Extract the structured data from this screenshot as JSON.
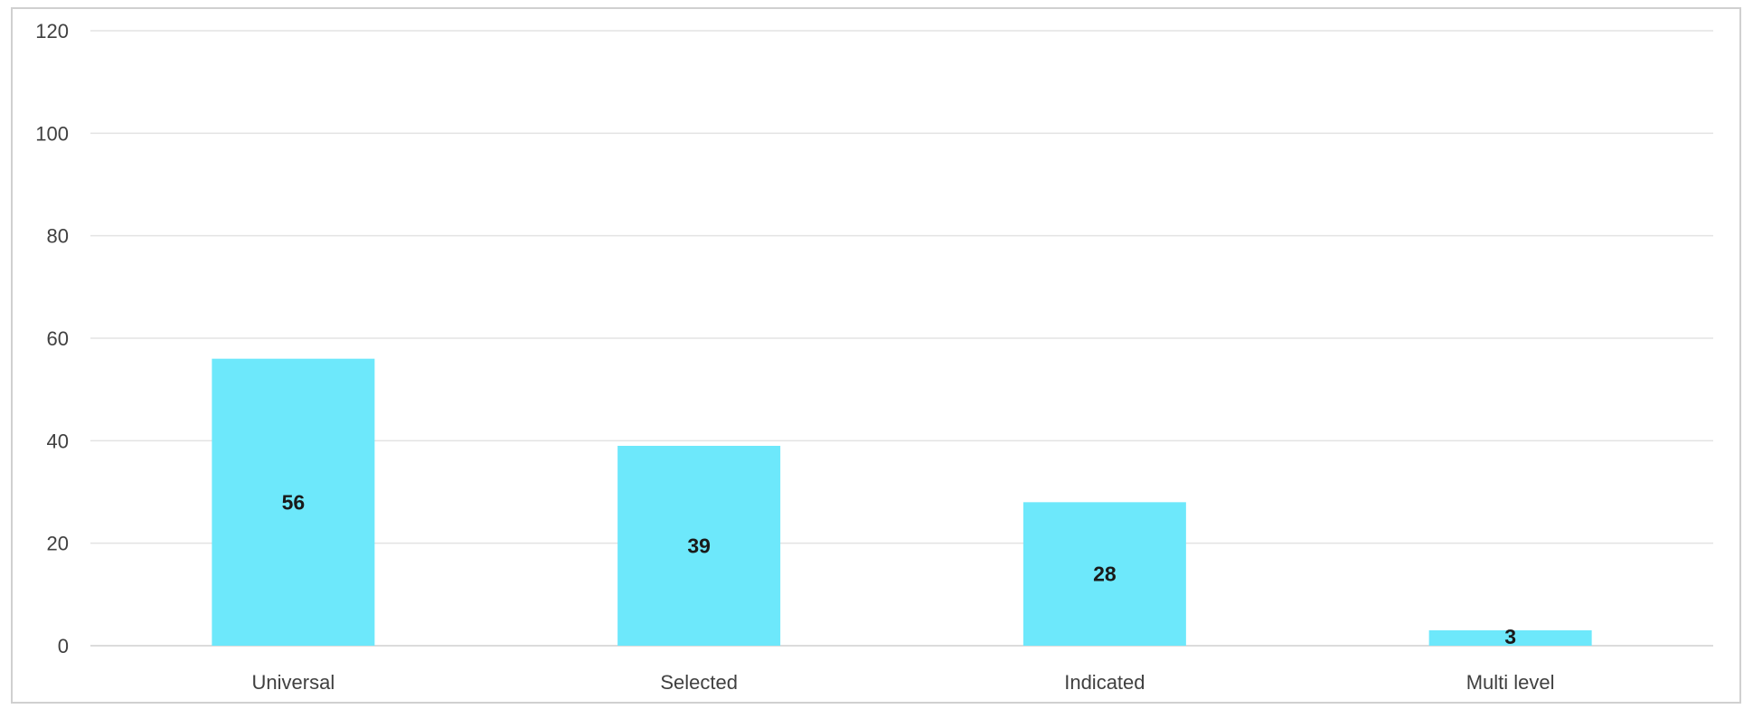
{
  "chart_data": {
    "type": "bar",
    "categories": [
      "Universal",
      "Selected",
      "Indicated",
      "Multi level"
    ],
    "values": [
      56,
      39,
      28,
      3
    ],
    "data_labels": [
      "56",
      "39",
      "28",
      "3"
    ],
    "ylim": [
      0,
      120
    ],
    "yticks": [
      0,
      20,
      40,
      60,
      80,
      100,
      120
    ],
    "ytick_labels": [
      "0",
      "20",
      "40",
      "60",
      "80",
      "100",
      "120"
    ],
    "bar_color": "#6de8fb",
    "grid": true,
    "legend": "none",
    "title": "",
    "xlabel": "",
    "ylabel": ""
  }
}
